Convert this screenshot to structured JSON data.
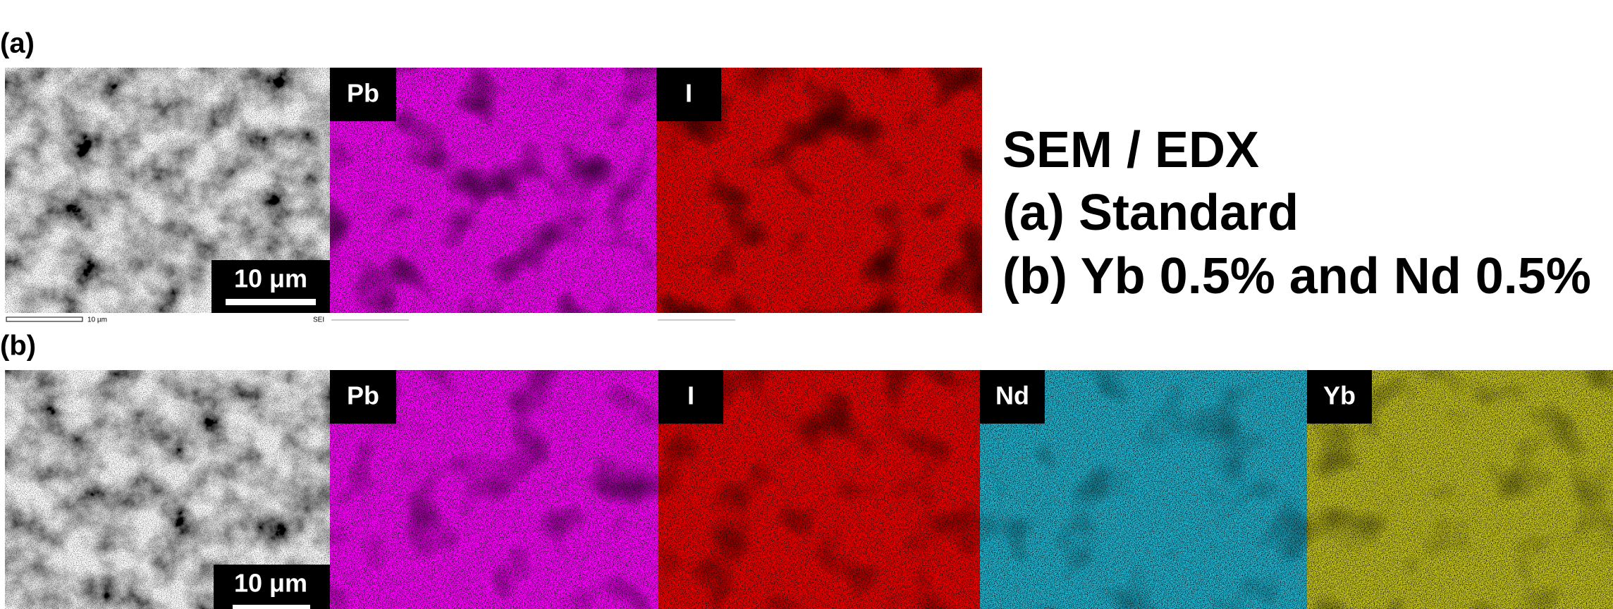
{
  "figure": {
    "title": "SEM / EDX",
    "captions": [
      "(a) Standard",
      "(b) Yb 0.5% and Nd 0.5%"
    ]
  },
  "rows": [
    {
      "label": "(a)",
      "sem_scale_bar": "10 μm",
      "maps": [
        "Pb",
        "I"
      ],
      "footer": [
        "10 µm",
        "SEI"
      ]
    },
    {
      "label": "(b)",
      "sem_scale_bar": "10 μm",
      "maps": [
        "Pb",
        "I",
        "Nd",
        "Yb"
      ]
    }
  ]
}
